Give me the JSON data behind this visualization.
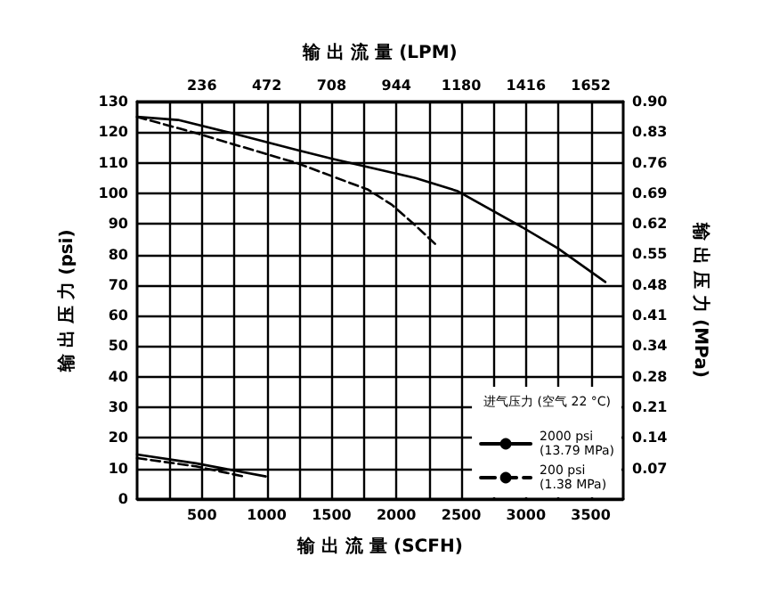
{
  "chart_data": {
    "type": "line",
    "xlabel": "输 出 流 量 (SCFH)",
    "x2label": "输 出 流 量 (LPM)",
    "ylabel": "输 出 压 力 (psi)",
    "y2label": "输 出 压 力 (MPa)",
    "legend_title": "进气压力 (空气 22 °C)",
    "xlim": [
      0,
      3750
    ],
    "xticks": [
      {
        "value": 250,
        "label": null
      },
      500,
      {
        "value": 750,
        "label": null
      },
      1000,
      {
        "value": 1250,
        "label": null
      },
      1500,
      {
        "value": 1750,
        "label": null
      },
      2000,
      {
        "value": 2250,
        "label": null
      },
      2500,
      {
        "value": 2750,
        "label": null
      },
      3000,
      {
        "value": 3250,
        "label": null
      },
      3500
    ],
    "x2lim": [
      0,
      1770
    ],
    "x2ticks": [
      236,
      472,
      708,
      944,
      1180,
      1416,
      1652
    ],
    "ylim": [
      0,
      130
    ],
    "yticks": [
      0,
      10,
      20,
      30,
      40,
      50,
      60,
      70,
      80,
      90,
      100,
      110,
      120,
      130
    ],
    "y2lim": [
      0,
      0.896
    ],
    "y2ticks": [
      {
        "value": 0.069,
        "label": "0.07"
      },
      {
        "value": 0.138,
        "label": "0.14"
      },
      {
        "value": 0.207,
        "label": "0.21"
      },
      {
        "value": 0.276,
        "label": "0.28"
      },
      {
        "value": 0.345,
        "label": "0.34"
      },
      {
        "value": 0.414,
        "label": "0.41"
      },
      {
        "value": 0.483,
        "label": "0.48"
      },
      {
        "value": 0.552,
        "label": "0.55"
      },
      {
        "value": 0.621,
        "label": "0.62"
      },
      {
        "value": 0.689,
        "label": "0.69"
      },
      {
        "value": 0.758,
        "label": "0.76"
      },
      {
        "value": 0.827,
        "label": "0.83"
      },
      {
        "value": 0.896,
        "label": "0.90"
      }
    ],
    "grid": true,
    "legend": "bottom right",
    "marker": "none",
    "series": [
      {
        "name": "2000 psi\n(13.79 MPa)",
        "color": "#000000",
        "line_style": "solid",
        "x": [
          0,
          316,
          728,
          1232,
          1507,
          2147,
          2468,
          2971,
          3246,
          3612
        ],
        "values": [
          125,
          124,
          119.7,
          114.2,
          111.3,
          105,
          100.8,
          88.9,
          82,
          71
        ]
      },
      {
        "name": "200 psi\n(1.38 MPa)",
        "color": "#000000",
        "line_style": "dashed",
        "x": [
          0,
          453,
          1232,
          1782,
          1964,
          2147,
          2308
        ],
        "values": [
          125,
          119.7,
          109.9,
          101.2,
          96.3,
          89.5,
          83.1
        ]
      },
      {
        "color": "#000000",
        "line_style": "solid",
        "x": [
          0,
          453,
          993
        ],
        "values": [
          14.6,
          11.7,
          7.4
        ]
      },
      {
        "color": "#000000",
        "line_style": "dashed",
        "x": [
          0,
          453,
          842
        ],
        "values": [
          13.4,
          10.7,
          7.2
        ]
      }
    ]
  }
}
